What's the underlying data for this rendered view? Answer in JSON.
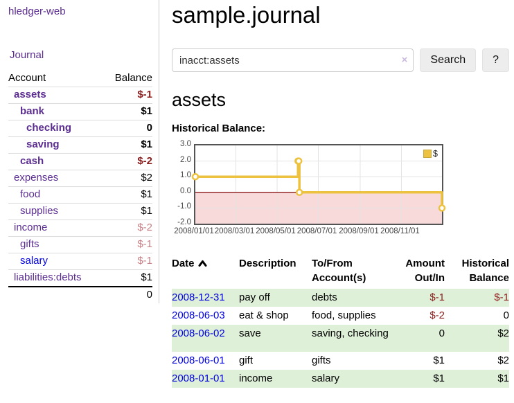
{
  "app": {
    "title": "hledger-web"
  },
  "sidebar": {
    "nav": [
      {
        "label": "Journal"
      }
    ],
    "accounts_table": {
      "col_account": "Account",
      "col_balance": "Balance",
      "accounts": [
        {
          "name": "assets",
          "level": 1,
          "bold": true,
          "balance": "$-1",
          "balance_class": "neg-strong"
        },
        {
          "name": "bank",
          "level": 2,
          "bold": true,
          "balance": "$1",
          "balance_class": ""
        },
        {
          "name": "checking",
          "level": 3,
          "bold": true,
          "balance": "0",
          "balance_class": ""
        },
        {
          "name": "saving",
          "level": 3,
          "bold": true,
          "balance": "$1",
          "balance_class": ""
        },
        {
          "name": "cash",
          "level": 2,
          "bold": true,
          "balance": "$-2",
          "balance_class": "neg-strong"
        },
        {
          "name": "expenses",
          "level": 1,
          "bold": false,
          "balance": "$2",
          "balance_class": ""
        },
        {
          "name": "food",
          "level": 2,
          "bold": false,
          "balance": "$1",
          "balance_class": ""
        },
        {
          "name": "supplies",
          "level": 2,
          "bold": false,
          "balance": "$1",
          "balance_class": ""
        },
        {
          "name": "income",
          "level": 1,
          "bold": false,
          "balance": "$-2",
          "balance_class": "neg-muted"
        },
        {
          "name": "gifts",
          "level": 2,
          "bold": false,
          "balance": "$-1",
          "balance_class": "neg-muted"
        },
        {
          "name": "salary",
          "level": 2,
          "bold": false,
          "balance": "$-1",
          "balance_class": "neg-muted",
          "link_color": "blue"
        },
        {
          "name": "liabilities:debts",
          "level": 1,
          "bold": false,
          "balance": "$1",
          "balance_class": ""
        }
      ],
      "total": "0"
    }
  },
  "main": {
    "page_title": "sample.journal",
    "search": {
      "query": "inacct:assets",
      "clear_icon": "×",
      "search_label": "Search",
      "help_label": "?"
    },
    "account_heading": "assets"
  },
  "chart_data": {
    "type": "line",
    "title": "Historical Balance:",
    "step": true,
    "series": [
      {
        "name": "$",
        "color": "#edc240",
        "points": [
          [
            "2008-01-01",
            1
          ],
          [
            "2008-06-01",
            2
          ],
          [
            "2008-06-02",
            2
          ],
          [
            "2008-06-03",
            0
          ],
          [
            "2008-12-31",
            -1
          ]
        ]
      }
    ],
    "xlim": [
      "2008-01-01",
      "2008-12-31"
    ],
    "ylim": [
      -2,
      3
    ],
    "x_ticks": [
      {
        "label": "2008/01/01",
        "date": "2008-01-01"
      },
      {
        "label": "2008/03/01",
        "date": "2008-03-01"
      },
      {
        "label": "2008/05/01",
        "date": "2008-05-01"
      },
      {
        "label": "2008/07/01",
        "date": "2008-07-01"
      },
      {
        "label": "2008/09/01",
        "date": "2008-09-01"
      },
      {
        "label": "2008/11/01",
        "date": "2008-11-01"
      }
    ],
    "y_ticks": [
      {
        "label": "3.0",
        "value": 3
      },
      {
        "label": "2.0",
        "value": 2
      },
      {
        "label": "1.0",
        "value": 1
      },
      {
        "label": "0.0",
        "value": 0
      },
      {
        "label": "-1.0",
        "value": -1
      },
      {
        "label": "-2.0",
        "value": -2
      }
    ],
    "legend": {
      "label": "$",
      "position": "top-right"
    },
    "grid": true,
    "negative_region_fill": "#f9dada",
    "zero_line_color": "#8b1a1a"
  },
  "transactions": {
    "columns": {
      "date": "Date",
      "description": "Description",
      "accounts": "To/From Account(s)",
      "amount": "Amount Out/In",
      "balance": "Historical Balance"
    },
    "sort": {
      "column": "date",
      "direction": "asc"
    },
    "rows": [
      {
        "date": "2008-12-31",
        "description": "pay off",
        "accounts": "debts",
        "amount": "$-1",
        "amount_neg": true,
        "balance": "$-1",
        "balance_neg": true,
        "tall": false
      },
      {
        "date": "2008-06-03",
        "description": "eat & shop",
        "accounts": "food, supplies",
        "amount": "$-2",
        "amount_neg": true,
        "balance": "0",
        "balance_neg": false,
        "tall": false
      },
      {
        "date": "2008-06-02",
        "description": "save",
        "accounts": "saving, checking",
        "amount": "0",
        "amount_neg": false,
        "balance": "$2",
        "balance_neg": false,
        "tall": true
      },
      {
        "date": "2008-06-01",
        "description": "gift",
        "accounts": "gifts",
        "amount": "$1",
        "amount_neg": false,
        "balance": "$2",
        "balance_neg": false,
        "tall": false
      },
      {
        "date": "2008-01-01",
        "description": "income",
        "accounts": "salary",
        "amount": "$1",
        "amount_neg": false,
        "balance": "$1",
        "balance_neg": false,
        "tall": false
      }
    ]
  },
  "colors": {
    "link_purple": "#5b2d91",
    "link_blue": "#0000dd",
    "negative_strong": "#8b1d1d",
    "negative_muted": "#c87f84",
    "row_stripe_green": "#dff0d8",
    "chart_line": "#edc240",
    "chart_negative_fill": "#f9dada",
    "chart_zero_line": "#8b1a1a"
  }
}
